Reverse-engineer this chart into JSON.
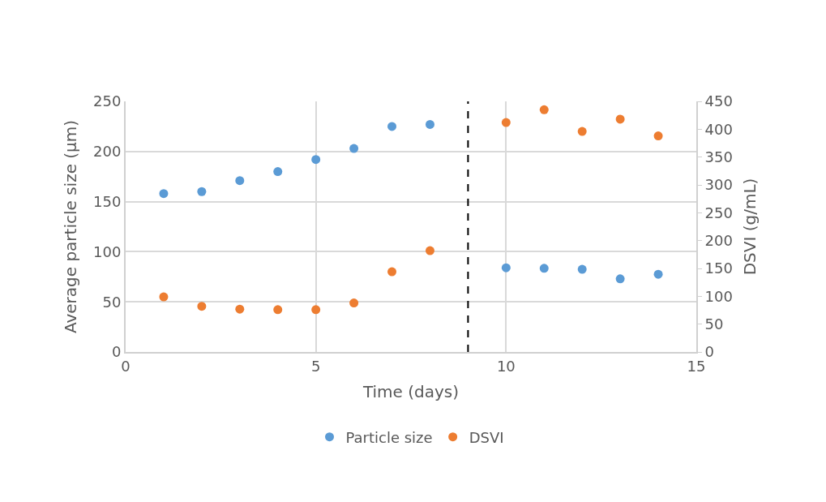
{
  "chart_data": {
    "type": "scatter",
    "xlabel": "Time (days)",
    "ylabel": "Average particle size (µm)",
    "y2label": "DSVI (g/mL)",
    "xlim": [
      0,
      15
    ],
    "xticks": [
      0,
      5,
      10,
      15
    ],
    "ylim": [
      0,
      250
    ],
    "yticks": [
      0,
      50,
      100,
      150,
      200,
      250
    ],
    "y2lim": [
      0,
      450
    ],
    "y2ticks": [
      0,
      50,
      100,
      150,
      200,
      250,
      300,
      350,
      400,
      450
    ],
    "grid": true,
    "legend": "bottom",
    "marker": "circle",
    "series": [
      {
        "name": "Particle size",
        "color": "#5b9bd5",
        "x": [
          1,
          2,
          3,
          4,
          5,
          6,
          7,
          8,
          10,
          11,
          12,
          13,
          14
        ],
        "values": [
          158,
          160,
          171,
          180,
          192,
          203,
          225,
          227,
          84,
          83.5,
          82.5,
          73,
          77.5
        ]
      },
      {
        "name": "DSVI",
        "color": "#ed7d31",
        "axis": "y2",
        "x": [
          1,
          2,
          3,
          4,
          5,
          6,
          7,
          8,
          10,
          11,
          12,
          13,
          14
        ],
        "values": [
          99,
          82,
          77,
          76,
          76,
          88,
          144,
          182,
          412,
          435,
          396,
          418,
          388
        ]
      }
    ],
    "ref_lines": [
      {
        "axis": "x",
        "value": 9,
        "label": null,
        "color": "#000000",
        "line_style": "dashed"
      }
    ]
  }
}
